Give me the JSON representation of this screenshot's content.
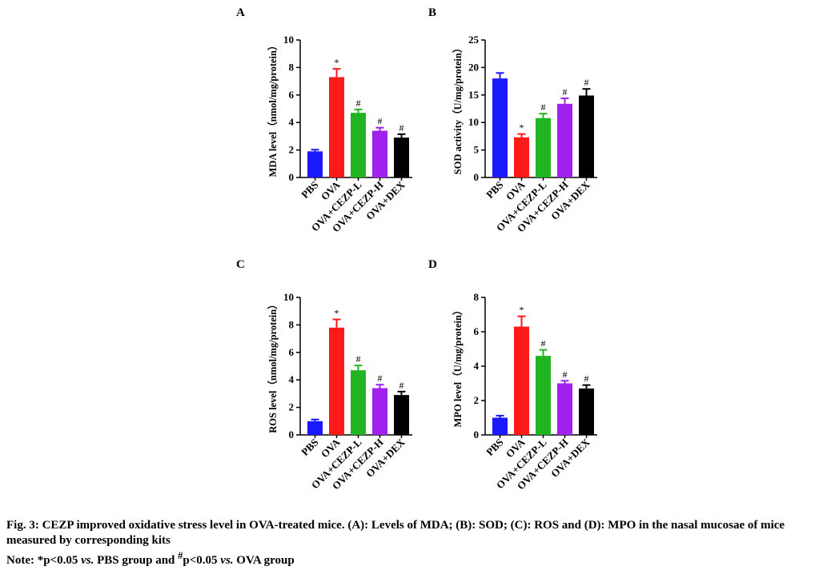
{
  "chart_data": [
    {
      "panel": "A",
      "type": "bar",
      "ylabel": "MDA level（nmol/mg/protein）",
      "ylim": [
        0,
        10
      ],
      "yticks": [
        0,
        2,
        4,
        6,
        8,
        10
      ],
      "categories": [
        "PBS",
        "OVA",
        "OVA+CEZP-L",
        "OVA+CEZP-H",
        "OVA+DEX"
      ],
      "values": [
        1.9,
        7.3,
        4.7,
        3.4,
        2.9
      ],
      "errors": [
        0.12,
        0.6,
        0.25,
        0.22,
        0.25
      ],
      "annotations": [
        "",
        "*",
        "#",
        "#",
        "#"
      ],
      "colors": [
        "#1a1aff",
        "#ff1a1a",
        "#22b522",
        "#a020f0",
        "#000000"
      ]
    },
    {
      "panel": "B",
      "type": "bar",
      "ylabel": "SOD activity（U/mg/protein）",
      "ylim": [
        0,
        25
      ],
      "yticks": [
        0,
        5,
        10,
        15,
        20,
        25
      ],
      "categories": [
        "PBS",
        "OVA",
        "OVA+CEZP-L",
        "OVA+CEZP-H",
        "OVA+DEX"
      ],
      "values": [
        18.0,
        7.3,
        10.8,
        13.4,
        14.9
      ],
      "errors": [
        1.0,
        0.6,
        0.8,
        1.0,
        1.2
      ],
      "annotations": [
        "",
        "*",
        "#",
        "#",
        "#"
      ],
      "colors": [
        "#1a1aff",
        "#ff1a1a",
        "#22b522",
        "#a020f0",
        "#000000"
      ]
    },
    {
      "panel": "C",
      "type": "bar",
      "ylabel": "ROS level（nmol/mg/protein）",
      "ylim": [
        0,
        10
      ],
      "yticks": [
        0,
        2,
        4,
        6,
        8,
        10
      ],
      "categories": [
        "PBS",
        "OVA",
        "OVA+CEZP-L",
        "OVA+CEZP-H",
        "OVA+DEX"
      ],
      "values": [
        1.0,
        7.8,
        4.7,
        3.4,
        2.9
      ],
      "errors": [
        0.12,
        0.6,
        0.35,
        0.25,
        0.25
      ],
      "annotations": [
        "",
        "*",
        "#",
        "#",
        "#"
      ],
      "colors": [
        "#1a1aff",
        "#ff1a1a",
        "#22b522",
        "#a020f0",
        "#000000"
      ]
    },
    {
      "panel": "D",
      "type": "bar",
      "ylabel": "MPO level（U/mg/protein）",
      "ylim": [
        0,
        8
      ],
      "yticks": [
        0,
        2,
        4,
        6,
        8
      ],
      "categories": [
        "PBS",
        "OVA",
        "OVA+CEZP-L",
        "OVA+CEZP-H",
        "OVA+DEX"
      ],
      "values": [
        1.0,
        6.3,
        4.6,
        3.0,
        2.7
      ],
      "errors": [
        0.12,
        0.6,
        0.35,
        0.15,
        0.2
      ],
      "annotations": [
        "",
        "*",
        "#",
        "#",
        "#"
      ],
      "colors": [
        "#1a1aff",
        "#ff1a1a",
        "#22b522",
        "#a020f0",
        "#000000"
      ]
    }
  ],
  "caption": {
    "line1": "Fig. 3: CEZP improved oxidative stress level in OVA-treated mice. (A): Levels of MDA; (B): SOD; (C): ROS and (D): MPO in the nasal mucosae of mice measured by corresponding kits",
    "note_prefix": "Note: *p<0.05 ",
    "vs1": "vs.",
    "note_mid": " PBS group and ",
    "hash_sup": "#",
    "note_p2": "p<0.05 ",
    "vs2": "vs.",
    "note_end": " OVA group"
  }
}
